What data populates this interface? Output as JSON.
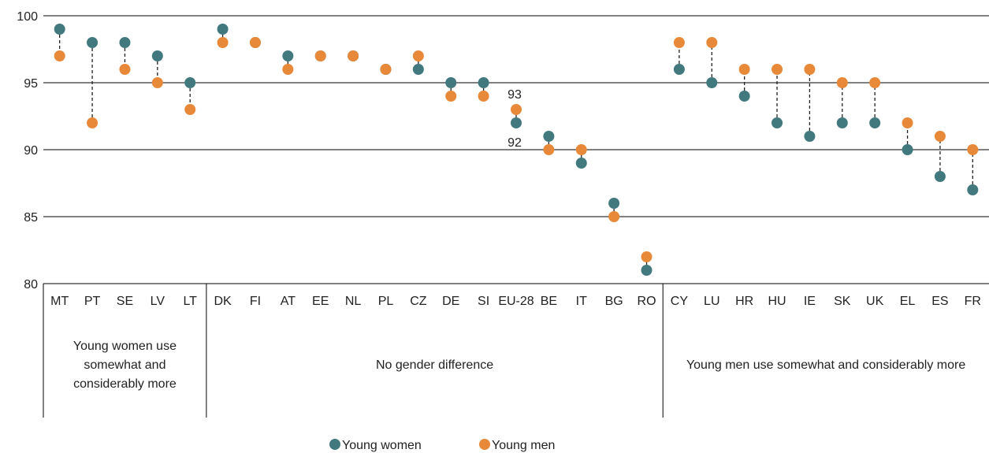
{
  "chart_data": {
    "type": "scatter",
    "categories": [
      "MT",
      "PT",
      "SE",
      "LV",
      "LT",
      "DK",
      "FI",
      "AT",
      "EE",
      "NL",
      "PL",
      "CZ",
      "DE",
      "SI",
      "EU-28",
      "BE",
      "IT",
      "BG",
      "RO",
      "CY",
      "LU",
      "HR",
      "HU",
      "IE",
      "SK",
      "UK",
      "EL",
      "ES",
      "FR"
    ],
    "series": [
      {
        "name": "Young women",
        "color": "#41797f",
        "values": [
          99,
          98,
          98,
          97,
          95,
          99,
          98,
          97,
          97,
          97,
          96,
          96,
          95,
          95,
          92,
          91,
          89,
          86,
          81,
          96,
          95,
          94,
          92,
          91,
          92,
          92,
          90,
          88,
          87
        ]
      },
      {
        "name": "Young men",
        "color": "#e8893a",
        "values": [
          97,
          92,
          96,
          95,
          93,
          98,
          98,
          96,
          97,
          97,
          96,
          97,
          94,
          94,
          93,
          90,
          90,
          85,
          82,
          98,
          98,
          96,
          96,
          96,
          95,
          95,
          92,
          91,
          90
        ]
      }
    ],
    "ylim": [
      80,
      100
    ],
    "yticks": [
      80,
      85,
      90,
      95,
      100
    ],
    "grid": true,
    "legend_position": "bottom-center",
    "annotations": [
      {
        "category": "EU-28",
        "value": 93,
        "label": "93"
      },
      {
        "category": "EU-28",
        "value": 92,
        "label": "92"
      }
    ],
    "groups": [
      {
        "label": "Young women use somewhat and considerably more",
        "first": 0,
        "last": 4
      },
      {
        "label": "No gender difference",
        "first": 5,
        "last": 18
      },
      {
        "label": "Young men use somewhat and considerably more",
        "first": 19,
        "last": 28
      }
    ]
  }
}
